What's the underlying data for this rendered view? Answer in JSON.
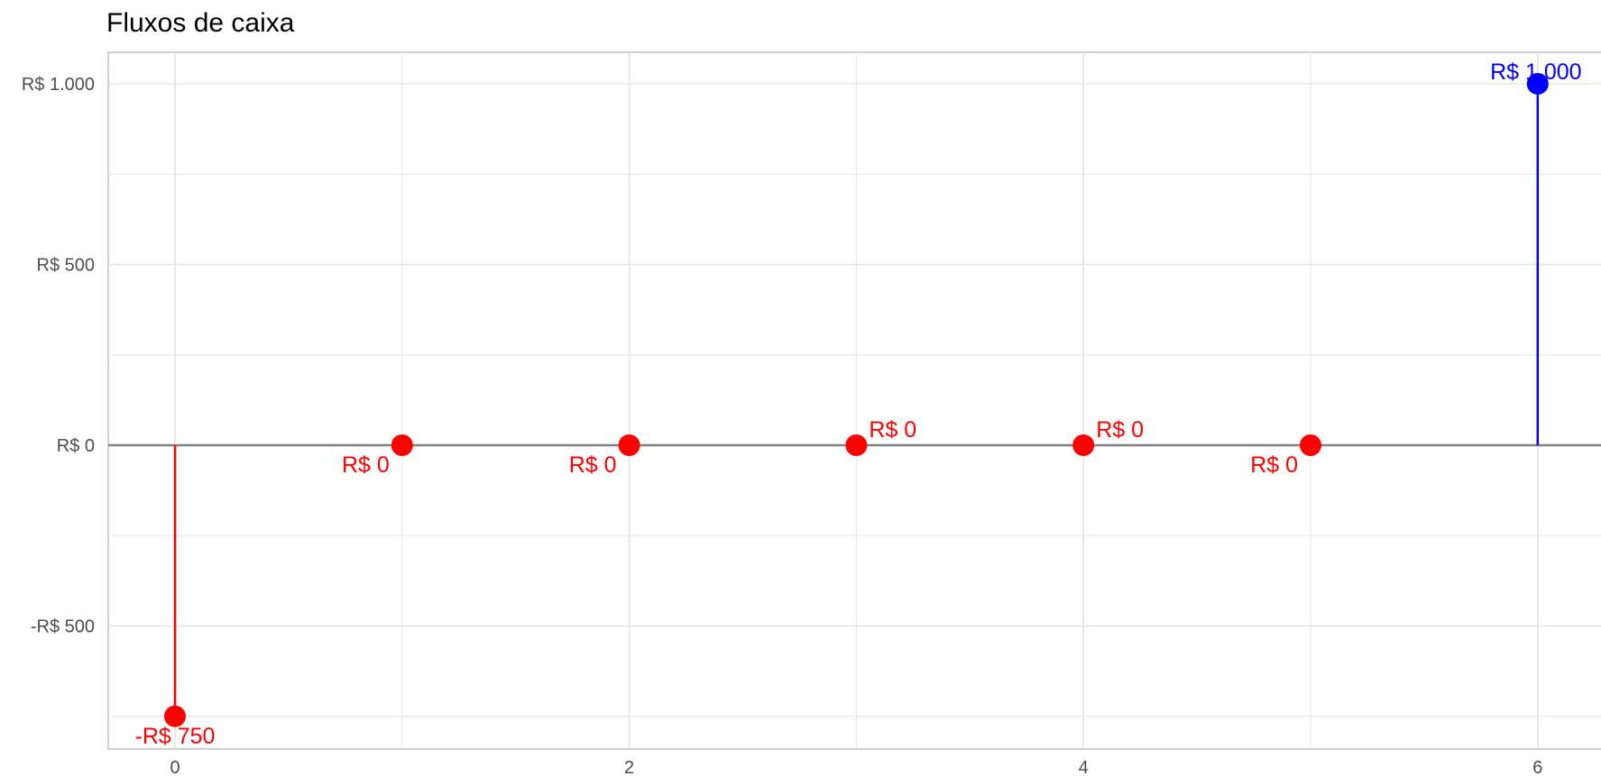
{
  "chart_data": {
    "type": "scatter",
    "title": "Fluxos de caixa",
    "xlabel": "",
    "ylabel": "",
    "x": [
      0,
      1,
      2,
      3,
      4,
      5,
      6
    ],
    "values": [
      -750,
      0,
      0,
      0,
      0,
      0,
      1000
    ],
    "data_labels": [
      "-R$ 750",
      "R$ 0",
      "R$ 0",
      "R$ 0",
      "R$ 0",
      "R$ 0",
      "R$ 1.000"
    ],
    "x_ticks": [
      0,
      2,
      4,
      6
    ],
    "x_tick_labels": [
      "0",
      "2",
      "4",
      "6"
    ],
    "y_ticks": [
      -500,
      0,
      500,
      1000
    ],
    "y_tick_labels": [
      "-R$ 500",
      "R$ 0",
      "R$ 500",
      "R$ 1.000"
    ],
    "xlim": [
      -0.3,
      6.3
    ],
    "ylim": [
      -835,
      1085
    ],
    "grid": true,
    "legend": "none",
    "baseline_value": 0,
    "colors": {
      "negative_or_zero": "#ff0000",
      "positive": "#0000ff",
      "baseline": "#808080",
      "grid": "#e5e5e5",
      "panel_border": "#bfbfbf"
    }
  }
}
